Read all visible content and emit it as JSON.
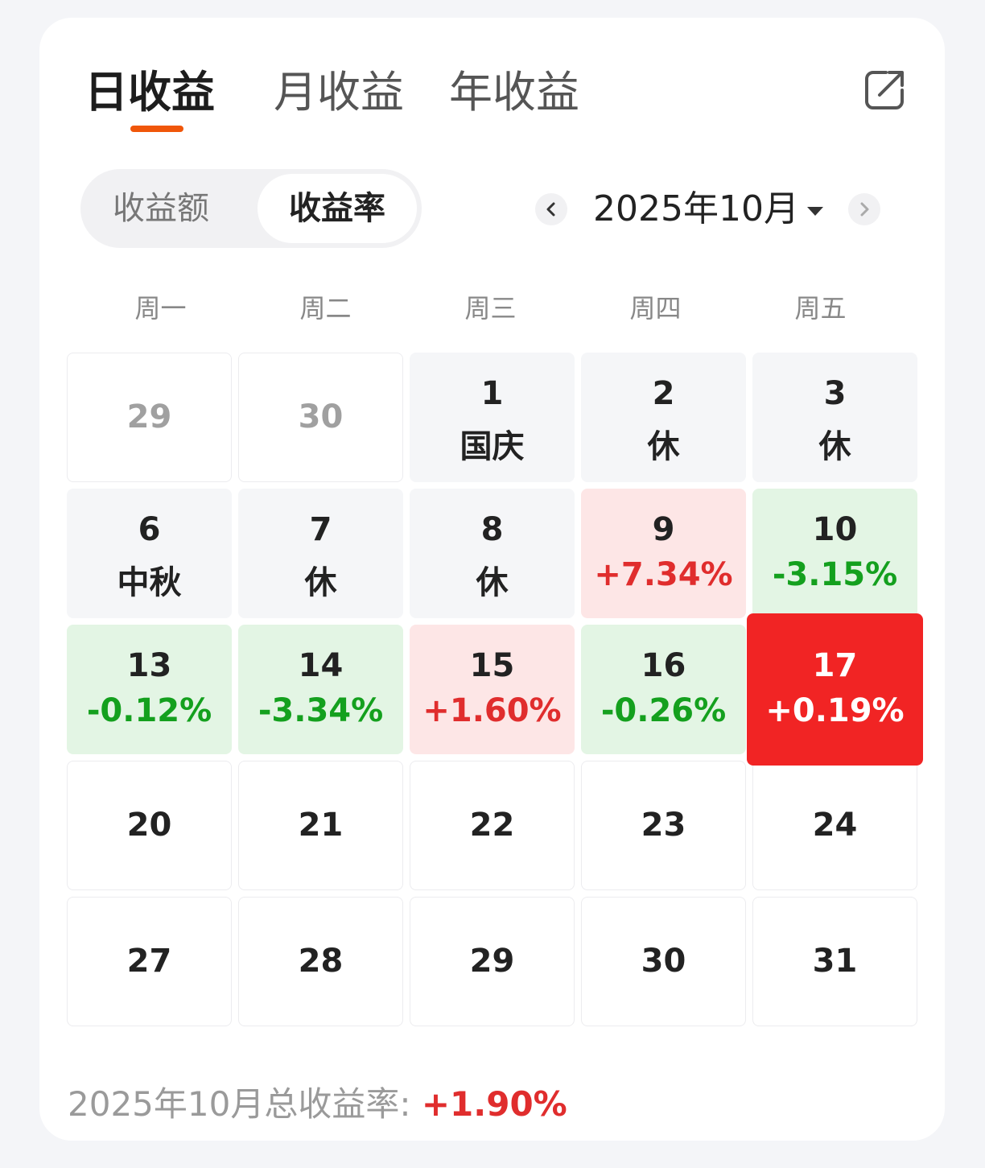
{
  "tabs": [
    {
      "label": "日收益",
      "active": true
    },
    {
      "label": "月收益",
      "active": false
    },
    {
      "label": "年收益",
      "active": false
    }
  ],
  "segment": {
    "left": "收益额",
    "right": "收益率",
    "selected": "收益率"
  },
  "month_picker": {
    "label": "2025年10月"
  },
  "weekdays": [
    "周一",
    "周二",
    "周三",
    "周四",
    "周五"
  ],
  "calendar": [
    [
      {
        "day": "29",
        "sub": "",
        "kind": "muted"
      },
      {
        "day": "30",
        "sub": "",
        "kind": "muted"
      },
      {
        "day": "1",
        "sub": "国庆",
        "kind": "holiday"
      },
      {
        "day": "2",
        "sub": "休",
        "kind": "holiday"
      },
      {
        "day": "3",
        "sub": "休",
        "kind": "holiday"
      }
    ],
    [
      {
        "day": "6",
        "sub": "中秋",
        "kind": "holiday"
      },
      {
        "day": "7",
        "sub": "休",
        "kind": "holiday"
      },
      {
        "day": "8",
        "sub": "休",
        "kind": "holiday"
      },
      {
        "day": "9",
        "sub": "+7.34%",
        "kind": "up"
      },
      {
        "day": "10",
        "sub": "-3.15%",
        "kind": "down"
      }
    ],
    [
      {
        "day": "13",
        "sub": "-0.12%",
        "kind": "down"
      },
      {
        "day": "14",
        "sub": "-3.34%",
        "kind": "down"
      },
      {
        "day": "15",
        "sub": "+1.60%",
        "kind": "up"
      },
      {
        "day": "16",
        "sub": "-0.26%",
        "kind": "down"
      },
      {
        "day": "17",
        "sub": "+0.19%",
        "kind": "selected"
      }
    ],
    [
      {
        "day": "20",
        "sub": "",
        "kind": "future"
      },
      {
        "day": "21",
        "sub": "",
        "kind": "future"
      },
      {
        "day": "22",
        "sub": "",
        "kind": "future"
      },
      {
        "day": "23",
        "sub": "",
        "kind": "future"
      },
      {
        "day": "24",
        "sub": "",
        "kind": "future"
      }
    ],
    [
      {
        "day": "27",
        "sub": "",
        "kind": "future"
      },
      {
        "day": "28",
        "sub": "",
        "kind": "future"
      },
      {
        "day": "29",
        "sub": "",
        "kind": "future"
      },
      {
        "day": "30",
        "sub": "",
        "kind": "future"
      },
      {
        "day": "31",
        "sub": "",
        "kind": "future"
      }
    ]
  ],
  "summary": {
    "label": "2025年10月总收益率:",
    "value": "+1.90%"
  },
  "colors": {
    "accent": "#f0560a",
    "up": "#e02d2d",
    "down": "#14a01e",
    "selected_bg": "#f12424"
  },
  "icons": {
    "share": "share-icon",
    "prev": "chevron-left-icon",
    "next": "chevron-right-icon",
    "dropdown": "caret-down-icon"
  }
}
